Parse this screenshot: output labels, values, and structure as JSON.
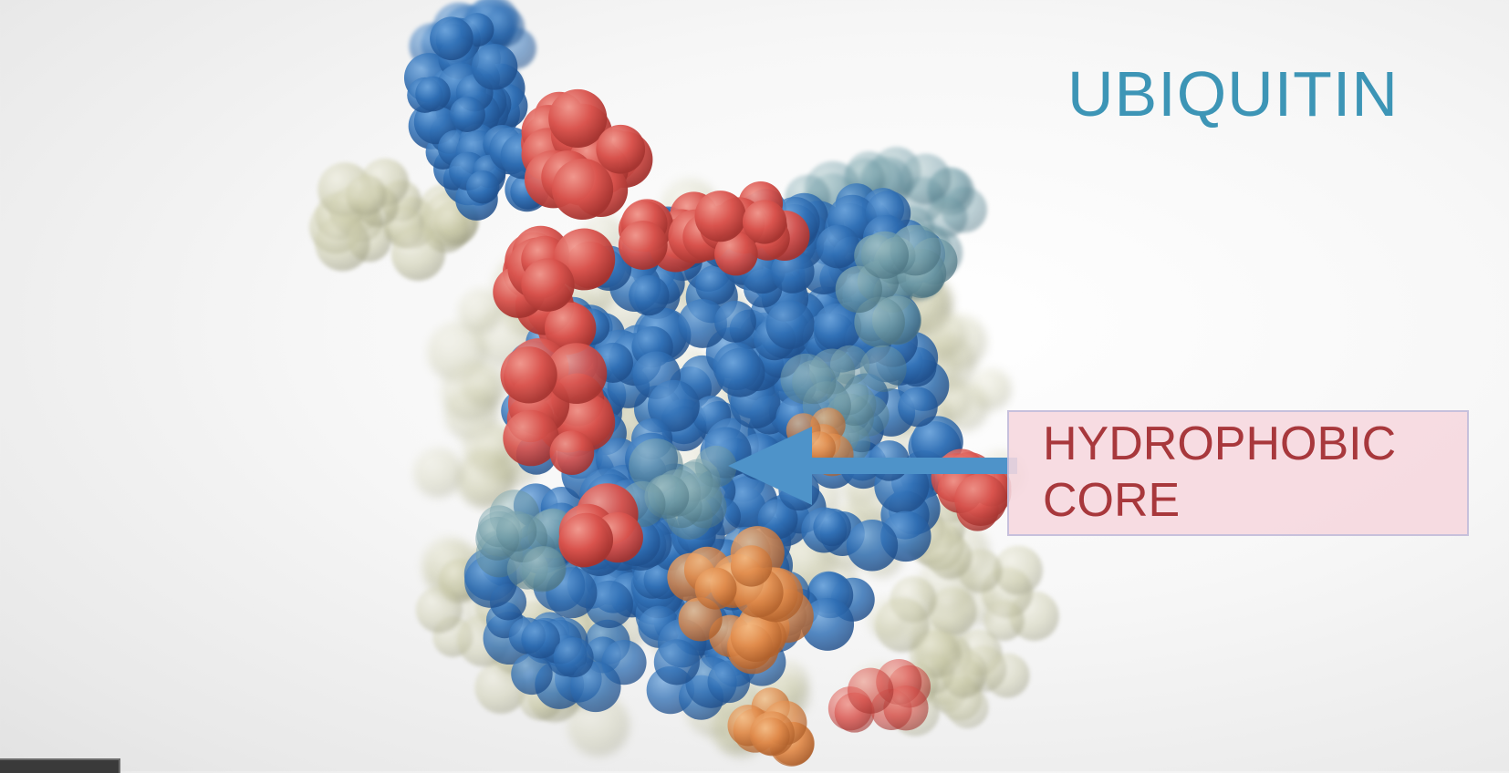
{
  "title": "UBIQUITIN",
  "annotation": {
    "line1": "HYDROPHOBIC",
    "line2": "CORE",
    "color": "#a8383c",
    "box_color": "#f6d7de"
  },
  "colors": {
    "title": "#3d95b6",
    "arrow": "#4e93c9",
    "atom_blue": "#2f6fb5",
    "atom_red": "#d9534d",
    "atom_beige": "#c9c9a7",
    "atom_orange": "#e08a4a"
  },
  "image": {
    "subject": "protein-space-filling-model",
    "arrow_icon": "left-arrow-icon"
  }
}
